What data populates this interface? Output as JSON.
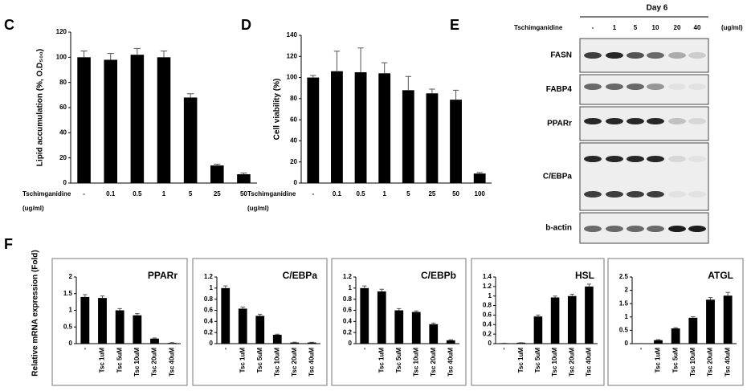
{
  "chart_data": [
    {
      "type": "bar",
      "panel": "C",
      "y_label": "Lipid accumulation (%, O.D₅₀₀)",
      "x_label": [
        "Tschimganidine",
        "(ug/ml)"
      ],
      "categories": [
        "-",
        "0.1",
        "0.5",
        "1",
        "5",
        "25",
        "50"
      ],
      "values": [
        100,
        98,
        102,
        100,
        68,
        14,
        7
      ],
      "errors": [
        5,
        5,
        5,
        5,
        3,
        1,
        1
      ],
      "color": "#000000",
      "ylim": [
        0,
        120
      ],
      "yticks": [
        0,
        20,
        40,
        60,
        80,
        100,
        120
      ]
    },
    {
      "type": "bar",
      "panel": "D",
      "y_label": "Cell viability (%)",
      "x_label": [
        "Tschimganidine",
        "(ug/ml)"
      ],
      "categories": [
        "-",
        "0.1",
        "0.5",
        "1",
        "5",
        "25",
        "50",
        "100"
      ],
      "values": [
        100,
        106,
        105,
        104,
        88,
        85,
        79,
        9
      ],
      "errors": [
        2,
        19,
        23,
        10,
        13,
        4,
        9,
        1
      ],
      "color": "#000000",
      "ylim": [
        0,
        140
      ],
      "yticks": [
        0,
        20,
        40,
        60,
        80,
        100,
        120,
        140
      ]
    },
    {
      "type": "bar",
      "title": "PPARr",
      "categories": [
        "-",
        "Tsc 1uM",
        "Tsc 5uM",
        "Tsc 10uM",
        "Tsc 20uM",
        "Tsc 40uM"
      ],
      "values": [
        1.4,
        1.37,
        1.0,
        0.85,
        0.15,
        0.02
      ],
      "errors": [
        0.07,
        0.06,
        0.05,
        0.05,
        0.02,
        0.01
      ],
      "color": "#000000",
      "ylim": [
        0,
        2
      ],
      "yticks": [
        0,
        0.5,
        1,
        1.5,
        2
      ]
    },
    {
      "type": "bar",
      "title": "C/EBPa",
      "categories": [
        "-",
        "Tsc 1uM",
        "Tsc 5uM",
        "Tsc 10uM",
        "Tsc 20uM",
        "Tsc 40uM"
      ],
      "values": [
        1.0,
        0.63,
        0.5,
        0.16,
        0.02,
        0.02
      ],
      "errors": [
        0.04,
        0.03,
        0.03,
        0.01,
        0.005,
        0.005
      ],
      "color": "#000000",
      "ylim": [
        0,
        1.2
      ],
      "yticks": [
        0,
        0.2,
        0.4,
        0.6,
        0.8,
        1,
        1.2
      ]
    },
    {
      "type": "bar",
      "title": "C/EBPb",
      "categories": [
        "-",
        "Tsc 1uM",
        "Tsc 5uM",
        "Tsc 10uM",
        "Tsc 20uM",
        "Tsc 40uM"
      ],
      "values": [
        1.0,
        0.94,
        0.6,
        0.57,
        0.35,
        0.06
      ],
      "errors": [
        0.04,
        0.04,
        0.03,
        0.02,
        0.02,
        0.01
      ],
      "color": "#000000",
      "ylim": [
        0,
        1.2
      ],
      "yticks": [
        0,
        0.2,
        0.4,
        0.6,
        0.8,
        1,
        1.2
      ]
    },
    {
      "type": "bar",
      "title": "HSL",
      "categories": [
        "-",
        "Tsc 1uM",
        "Tsc 5uM",
        "Tsc 10uM",
        "Tsc 20uM",
        "Tsc 40uM"
      ],
      "values": [
        0.01,
        0.02,
        0.57,
        0.97,
        1.0,
        1.2
      ],
      "errors": [
        0,
        0,
        0.03,
        0.03,
        0.04,
        0.05
      ],
      "color": "#000000",
      "ylim": [
        0,
        1.4
      ],
      "yticks": [
        0,
        0.2,
        0.4,
        0.6,
        0.8,
        1,
        1.2,
        1.4
      ]
    },
    {
      "type": "bar",
      "title": "ATGL",
      "categories": [
        "-",
        "Tsc 1uM",
        "Tsc 5uM",
        "Tsc 10uM",
        "Tsc 20uM",
        "Tsc 40uM"
      ],
      "values": [
        0.01,
        0.13,
        0.57,
        0.97,
        1.65,
        1.8
      ],
      "errors": [
        0,
        0.02,
        0.03,
        0.04,
        0.08,
        0.12
      ],
      "color": "#000000",
      "ylim": [
        0,
        2.5
      ],
      "yticks": [
        0,
        0.5,
        1,
        1.5,
        2,
        2.5
      ]
    }
  ],
  "blot": {
    "panel": "E",
    "header": "Day 6",
    "treatment": "Tschimganidine",
    "lanes": [
      "-",
      "1",
      "5",
      "10",
      "20",
      "40"
    ],
    "unit": "(ug/ml)",
    "proteins": [
      "FASN",
      "FABP4",
      "PPARr",
      "C/EBPa",
      "b-actin"
    ]
  },
  "mrna": {
    "panel": "F",
    "y_label": "Relative mRNA expression (Fold)"
  }
}
